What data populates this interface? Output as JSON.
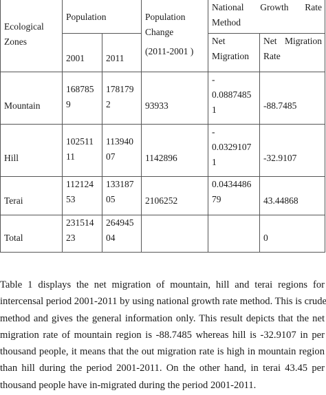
{
  "table": {
    "header": {
      "ecological_zones": [
        "Ecological",
        "Zones"
      ],
      "population": "Population",
      "year_2001": "2001",
      "year_2011": "2011",
      "population_change": [
        "Population",
        "Change",
        "(2011-2001 )"
      ],
      "method": [
        "National",
        "Growth",
        "Rate",
        "Method"
      ],
      "net_migration": [
        "Net",
        "Migration"
      ],
      "net_migration_rate": [
        "Net",
        "Migration",
        "Rate"
      ]
    },
    "rows": [
      {
        "zone": "Mountain",
        "pop2001": [
          "168785",
          "9"
        ],
        "pop2011": [
          "178179",
          "2"
        ],
        "change": "93933",
        "net_migration": [
          "-",
          "0.0887485",
          "1"
        ],
        "rate": "-88.7485"
      },
      {
        "zone": "Hill",
        "pop2001": [
          "102511",
          "11"
        ],
        "pop2011": [
          "113940",
          "07"
        ],
        "change": "1142896",
        "net_migration": [
          "-",
          "0.0329107",
          "1"
        ],
        "rate": "-32.9107"
      },
      {
        "zone": "Terai",
        "pop2001": [
          "112124",
          "53"
        ],
        "pop2011": [
          "133187",
          "05"
        ],
        "change": "2106252",
        "net_migration": [
          "0.0434486",
          "79"
        ],
        "rate": "43.44868"
      },
      {
        "zone": "Total",
        "pop2001": [
          "231514",
          "23"
        ],
        "pop2011": [
          "264945",
          "04"
        ],
        "change": "",
        "net_migration": [
          ""
        ],
        "rate": "0"
      }
    ]
  },
  "paragraph": [
    "Table 1 displays the net migration of mountain, hill and terai regions for",
    "intercensal period 2001-2011 by using national growth rate method. This is crude",
    "method and gives the general information only. This result depicts that the net",
    "migration rate of mountain region is -88.7485 whereas hill is -32.9107 in per",
    "thousand people, it means that the out migration rate is high in mountain region",
    "than hill during the period 2001-2011. On the other hand, in terai 43.45 per",
    "thousand people have in-migrated during the period 2001-2011."
  ]
}
